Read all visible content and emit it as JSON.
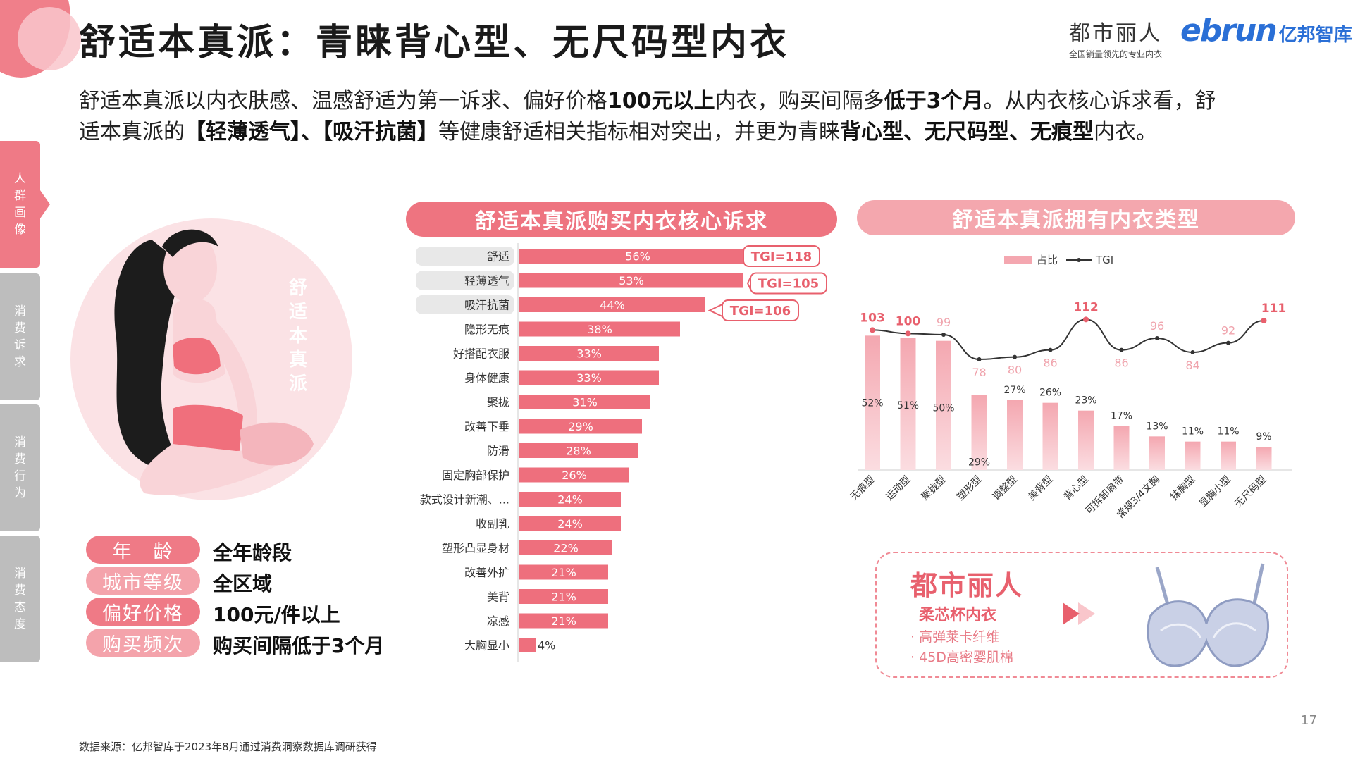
{
  "header": {
    "title": "舒适本真派：青睐背心型、无尺码型内衣",
    "brand_dushi": "都市丽人",
    "brand_dushi_slogan": "全国销量领先的专业内衣",
    "brand_ebrun": "ebrun",
    "brand_ebrun_cn": "亿邦智库"
  },
  "intro": {
    "l1a": "舒适本真派以内衣肤感、温感舒适为第一诉求、偏好价格",
    "l1b": "100元以上",
    "l1c": "内衣，购买间隔多",
    "l1d": "低于3个月",
    "l1e": "。从内衣核心诉求看，舒",
    "l2a": "适本真派的",
    "l2b": "【轻薄透气】、【吸汗抗菌】",
    "l2c": "等健康舒适相关指标相对突出，并更为青睐",
    "l2d": "背心型、无尺码型、无痕型",
    "l2e": "内衣。"
  },
  "sidenav": [
    {
      "chars": [
        "人",
        "群",
        "画",
        "像"
      ],
      "active": true
    },
    {
      "chars": [
        "消",
        "费",
        "诉",
        "求"
      ],
      "active": false
    },
    {
      "chars": [
        "消",
        "费",
        "行",
        "为"
      ],
      "active": false
    },
    {
      "chars": [
        "消",
        "费",
        "态",
        "度"
      ],
      "active": false
    }
  ],
  "portrait": {
    "label": [
      "舒",
      "适",
      "本",
      "真",
      "派"
    ]
  },
  "profile": [
    {
      "tag": "年　龄",
      "value": "全年龄段"
    },
    {
      "tag": "城市等级",
      "value": "全区域"
    },
    {
      "tag": "偏好价格",
      "value": "100元/件以上"
    },
    {
      "tag": "购买频次",
      "value": "购买间隔低于3个月"
    }
  ],
  "chart_data": [
    {
      "type": "bar",
      "orientation": "horizontal",
      "title": "舒适本真派购买内衣核心诉求",
      "categories": [
        "舒适",
        "轻薄透气",
        "吸汗抗菌",
        "隐形无痕",
        "好搭配衣服",
        "身体健康",
        "聚拢",
        "改善下垂",
        "防滑",
        "固定胸部保护",
        "款式设计新潮、...",
        "收副乳",
        "塑形凸显身材",
        "改善外扩",
        "美背",
        "凉感",
        "大胸显小"
      ],
      "values": [
        56,
        53,
        44,
        38,
        33,
        33,
        31,
        29,
        28,
        26,
        24,
        24,
        22,
        21,
        21,
        21,
        4
      ],
      "value_labels": [
        "56%",
        "53%",
        "44%",
        "38%",
        "33%",
        "33%",
        "31%",
        "29%",
        "28%",
        "26%",
        "24%",
        "24%",
        "22%",
        "21%",
        "21%",
        "21%",
        "4%"
      ],
      "callouts": [
        {
          "index": 0,
          "label": "TGI=118"
        },
        {
          "index": 1,
          "label": "TGI=105"
        },
        {
          "index": 2,
          "label": "TGI=106"
        }
      ],
      "xlim": [
        0,
        60
      ],
      "colors": {
        "bar": "#ee6f7d",
        "highlight": "#e8e8e8",
        "callout": "#e8606d"
      }
    },
    {
      "type": "bar+line",
      "title": "舒适本真派拥有内衣类型",
      "legend": [
        "占比",
        "TGI"
      ],
      "legend_position": "top",
      "categories": [
        "无痕型",
        "运动型",
        "聚拢型",
        "塑形型",
        "调整型",
        "美背型",
        "背心型",
        "可拆卸肩带",
        "常规3/4文胸",
        "抹胸型",
        "显胸小型",
        "无尺码型"
      ],
      "series": [
        {
          "name": "占比",
          "type": "bar",
          "values": [
            52,
            51,
            50,
            29,
            27,
            26,
            23,
            17,
            13,
            11,
            11,
            9
          ],
          "labels": [
            "52%",
            "51%",
            "50%",
            "29%",
            "27%",
            "26%",
            "23%",
            "17%",
            "13%",
            "11%",
            "11%",
            "9%"
          ]
        },
        {
          "name": "TGI",
          "type": "line",
          "values": [
            103,
            100,
            99,
            78,
            80,
            86,
            112,
            86,
            96,
            84,
            92,
            111
          ],
          "labels": [
            "103",
            "100",
            "99",
            "78",
            "80",
            "86",
            "112",
            "86",
            "96",
            "84",
            "92",
            "111"
          ],
          "emphasized": [
            0,
            1,
            6,
            11
          ]
        }
      ],
      "ylim_bar": [
        0,
        60
      ],
      "ylim_line": [
        60,
        120
      ],
      "colors": {
        "bar": "#f4a7b0",
        "bar_light": "#fbdde1",
        "line": "#333333",
        "label_hi": "#e8606d",
        "label_lo": "#f0a4ad"
      }
    }
  ],
  "promo": {
    "brand": "都市丽人",
    "product": "柔芯杯内衣",
    "feature1": "· 高弹莱卡纤维",
    "feature2": "· 45D高密婴肌棉"
  },
  "page_number": "17",
  "source": "数据来源：亿邦智库于2023年8月通过消费洞察数据库调研获得"
}
